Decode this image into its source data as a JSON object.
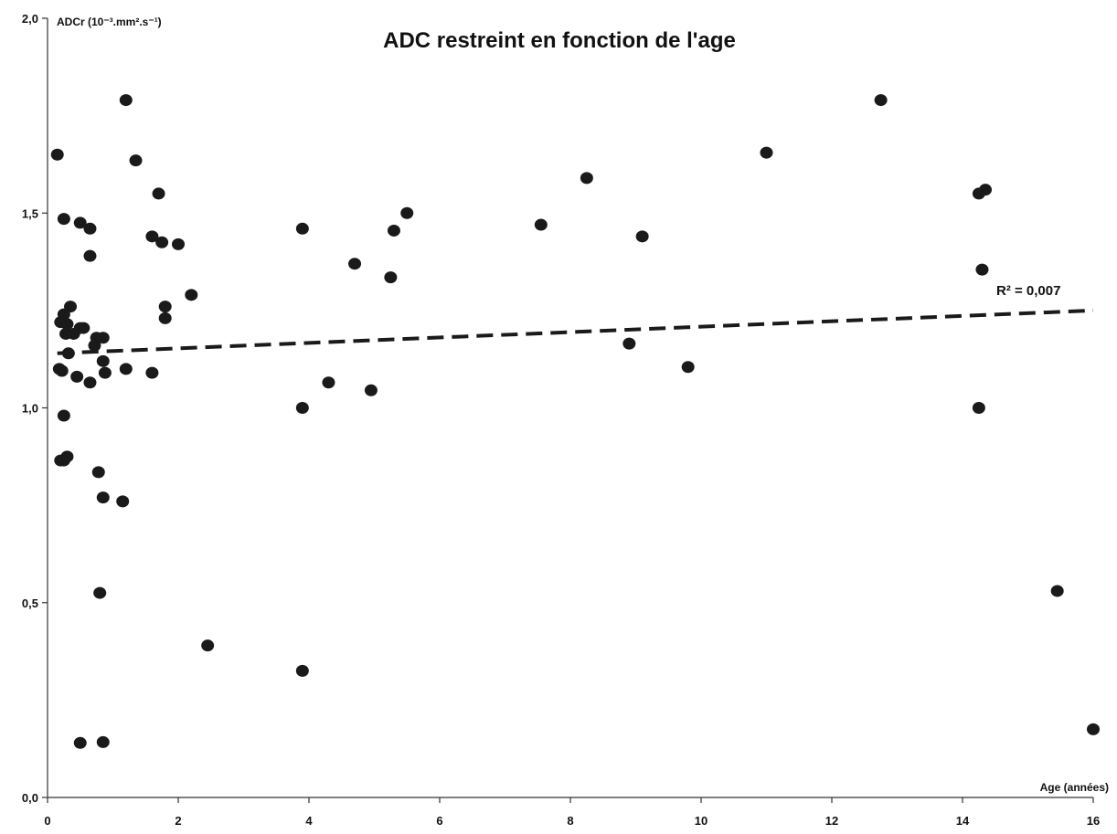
{
  "chart_data": {
    "type": "scatter",
    "title": "ADC restreint en fonction de l'age",
    "ylabel": "ADCr (10⁻³.mm².s⁻¹)",
    "xlabel": "Age (années)",
    "xlim": [
      0,
      16
    ],
    "ylim": [
      0,
      2
    ],
    "x_ticks": [
      0,
      2,
      4,
      6,
      8,
      10,
      12,
      14,
      16
    ],
    "x_tick_labels": [
      "0",
      "2",
      "4",
      "6",
      "8",
      "10",
      "12",
      "14",
      "16"
    ],
    "y_ticks": [
      0,
      0.5,
      1,
      1.5,
      2
    ],
    "y_tick_labels": [
      "0,0",
      "0,5",
      "1,0",
      "1,5",
      "2,0"
    ],
    "grid": false,
    "marker_color": "#1a1a1a",
    "trendline": {
      "label": "R² = 0,007",
      "x": [
        0.15,
        16
      ],
      "y": [
        1.14,
        1.25
      ],
      "style": "dashed"
    },
    "points": [
      [
        0.15,
        1.65
      ],
      [
        0.2,
        1.22
      ],
      [
        0.18,
        1.1
      ],
      [
        0.22,
        1.095
      ],
      [
        0.25,
        1.24
      ],
      [
        0.28,
        1.19
      ],
      [
        0.3,
        1.215
      ],
      [
        0.32,
        1.14
      ],
      [
        0.35,
        1.26
      ],
      [
        0.4,
        1.19
      ],
      [
        0.45,
        1.08
      ],
      [
        0.25,
        1.485
      ],
      [
        0.2,
        0.865
      ],
      [
        0.25,
        0.865
      ],
      [
        0.3,
        0.875
      ],
      [
        0.25,
        0.98
      ],
      [
        0.5,
        1.205
      ],
      [
        0.55,
        1.205
      ],
      [
        0.5,
        1.475
      ],
      [
        0.65,
        1.46
      ],
      [
        0.65,
        1.39
      ],
      [
        0.65,
        1.065
      ],
      [
        0.72,
        1.16
      ],
      [
        0.75,
        1.18
      ],
      [
        0.78,
        0.835
      ],
      [
        0.8,
        0.525
      ],
      [
        0.85,
        0.77
      ],
      [
        0.85,
        1.12
      ],
      [
        0.85,
        1.18
      ],
      [
        0.88,
        1.09
      ],
      [
        0.5,
        0.14
      ],
      [
        0.85,
        0.142
      ],
      [
        1.15,
        0.76
      ],
      [
        1.2,
        1.1
      ],
      [
        1.2,
        1.79
      ],
      [
        1.35,
        1.635
      ],
      [
        1.6,
        1.44
      ],
      [
        1.6,
        1.09
      ],
      [
        1.7,
        1.55
      ],
      [
        1.75,
        1.425
      ],
      [
        1.8,
        1.26
      ],
      [
        1.8,
        1.23
      ],
      [
        2.0,
        1.42
      ],
      [
        2.2,
        1.29
      ],
      [
        2.45,
        0.39
      ],
      [
        3.9,
        1.46
      ],
      [
        3.9,
        1.0
      ],
      [
        3.9,
        0.325
      ],
      [
        4.3,
        1.065
      ],
      [
        4.7,
        1.37
      ],
      [
        4.95,
        1.045
      ],
      [
        5.25,
        1.335
      ],
      [
        5.3,
        1.455
      ],
      [
        5.5,
        1.5
      ],
      [
        7.55,
        1.47
      ],
      [
        8.25,
        1.59
      ],
      [
        8.9,
        1.165
      ],
      [
        9.1,
        1.44
      ],
      [
        9.8,
        1.105
      ],
      [
        11.0,
        1.655
      ],
      [
        12.75,
        1.79
      ],
      [
        14.25,
        1.55
      ],
      [
        14.35,
        1.56
      ],
      [
        14.3,
        1.355
      ],
      [
        14.25,
        1.0
      ],
      [
        15.45,
        0.53
      ],
      [
        16.0,
        0.175
      ]
    ]
  }
}
